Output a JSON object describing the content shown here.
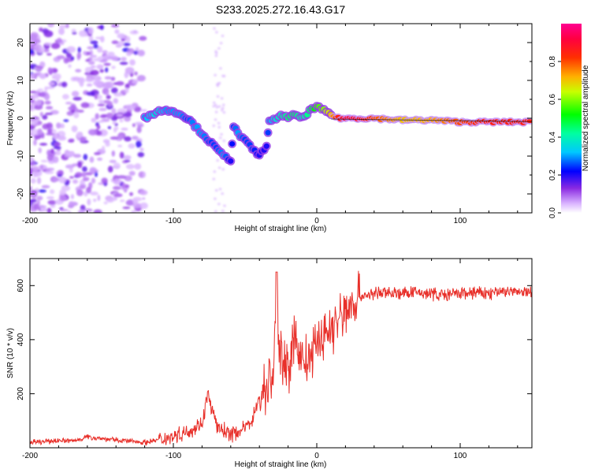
{
  "title": "S233.2025.272.16.43.G17",
  "chart_data": [
    {
      "type": "heatmap",
      "name": "spectrogram",
      "xlabel": "Height of straight line (km)",
      "ylabel": "Frequency (Hz)",
      "xlim": [
        -200,
        150
      ],
      "ylim": [
        -25,
        25
      ],
      "xticks": [
        -200,
        -100,
        0,
        100
      ],
      "yticks": [
        -20,
        -10,
        0,
        10,
        20
      ],
      "colorbar": {
        "label": "Normalized spectral amplitude",
        "range": [
          0,
          1
        ],
        "ticks": [
          "0.0",
          "0.2",
          "0.4",
          "0.6",
          "0.8"
        ],
        "colors": [
          "#ffffff",
          "#c080ff",
          "#6a00ff",
          "#0000ff",
          "#00ffff",
          "#00ff40",
          "#ffff00",
          "#ff8000",
          "#ff0000",
          "#ff0080"
        ]
      },
      "ridge": {
        "x": [
          -120,
          -115,
          -110,
          -105,
          -100,
          -95,
          -90,
          -85,
          -80,
          -75,
          -70,
          -65,
          -60,
          -58,
          -55,
          -50,
          -45,
          -40,
          -35,
          -33,
          -30,
          -25,
          -20,
          -15,
          -10,
          -5,
          0,
          5,
          10,
          15,
          20,
          30,
          40,
          60,
          80,
          100,
          120,
          150
        ],
        "freq": [
          0,
          1,
          2,
          2,
          2,
          1,
          0,
          -2,
          -4,
          -6,
          -8,
          -10,
          -11,
          -2,
          -4,
          -6,
          -8,
          -10,
          -7,
          -1,
          -0.5,
          1,
          0,
          1,
          0,
          2,
          3,
          2,
          1,
          0,
          0,
          0,
          0,
          -0.5,
          -0.5,
          -1,
          -1,
          -1
        ],
        "amplitude": [
          0.3,
          0.35,
          0.35,
          0.3,
          0.3,
          0.3,
          0.25,
          0.3,
          0.3,
          0.25,
          0.25,
          0.3,
          0.2,
          0.25,
          0.3,
          0.25,
          0.25,
          0.2,
          0.2,
          0.3,
          0.35,
          0.4,
          0.45,
          0.45,
          0.4,
          0.45,
          0.55,
          0.6,
          0.7,
          0.85,
          0.9,
          0.88,
          0.8,
          0.7,
          0.72,
          0.8,
          0.85,
          0.85
        ]
      }
    },
    {
      "type": "line",
      "name": "snr",
      "xlabel": "Height of straight line (km)",
      "ylabel": "SNR (10 * v/v)",
      "xlim": [
        -200,
        150
      ],
      "ylim": [
        0,
        700
      ],
      "xticks": [
        -200,
        -100,
        0,
        100
      ],
      "yticks": [
        200,
        400,
        600
      ],
      "color": "#e8302a",
      "series": [
        {
          "name": "SNR",
          "x": [
            -200,
            -190,
            -180,
            -170,
            -160,
            -150,
            -140,
            -130,
            -120,
            -110,
            -100,
            -90,
            -80,
            -76,
            -70,
            -60,
            -50,
            -45,
            -40,
            -35,
            -30,
            -28,
            -26,
            -22,
            -20,
            -15,
            -10,
            -5,
            0,
            5,
            10,
            15,
            20,
            25,
            30,
            40,
            50,
            60,
            70,
            80,
            90,
            100,
            110,
            120,
            130,
            140,
            150
          ],
          "values": [
            20,
            22,
            28,
            25,
            40,
            35,
            28,
            25,
            20,
            30,
            45,
            60,
            90,
            200,
            80,
            50,
            70,
            110,
            180,
            230,
            280,
            650,
            320,
            360,
            280,
            400,
            330,
            320,
            380,
            420,
            440,
            470,
            500,
            540,
            560,
            570,
            575,
            570,
            575,
            570,
            565,
            570,
            575,
            570,
            580,
            575,
            575
          ]
        }
      ]
    }
  ]
}
